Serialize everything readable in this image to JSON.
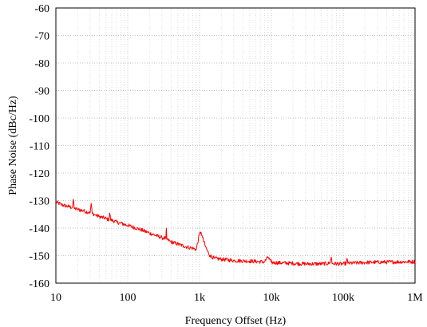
{
  "chart_data": {
    "type": "line",
    "title": "",
    "xlabel": "Frequency Offset (Hz)",
    "ylabel": "Phase Noise (dBc/Hz)",
    "x_scale": "log",
    "xlim": [
      10,
      1000000
    ],
    "ylim": [
      -160,
      -60
    ],
    "x_ticks": [
      10,
      100,
      1000,
      10000,
      100000,
      1000000
    ],
    "x_tick_labels": [
      "10",
      "100",
      "1k",
      "10k",
      "100k",
      "1M"
    ],
    "y_ticks": [
      -60,
      -70,
      -80,
      -90,
      -100,
      -110,
      -120,
      -130,
      -140,
      -150,
      -160
    ],
    "y_tick_labels": [
      "-60",
      "-70",
      "-80",
      "-90",
      "-100",
      "-110",
      "-120",
      "-130",
      "-140",
      "-150",
      "-160"
    ],
    "grid": true,
    "legend": "none",
    "series": [
      {
        "color": "#ff0000",
        "x": [
          10,
          12,
          15,
          17,
          17.5,
          18,
          20,
          25,
          30,
          31,
          32,
          35,
          40,
          50,
          55,
          56,
          58,
          70,
          100,
          150,
          200,
          300,
          340,
          345,
          350,
          400,
          500,
          600,
          700,
          800,
          900,
          1000,
          1050,
          1100,
          1200,
          1300,
          1400,
          1600,
          2000,
          3000,
          5000,
          8000,
          9000,
          10000,
          20000,
          30000,
          50000,
          65000,
          68000,
          70000,
          100000,
          110000,
          113000,
          116000,
          200000,
          500000,
          1000000
        ],
        "y": [
          -130.5,
          -131.5,
          -132.2,
          -132.5,
          -129.5,
          -132.8,
          -133.2,
          -133.8,
          -134.5,
          -131,
          -134.6,
          -135.2,
          -135.8,
          -136.5,
          -137,
          -134.5,
          -137,
          -137.8,
          -139,
          -140.5,
          -141.8,
          -143.5,
          -143.8,
          -140,
          -144,
          -145,
          -145.8,
          -146.5,
          -147,
          -147.3,
          -147.8,
          -142,
          -141.5,
          -143.5,
          -146.5,
          -148.5,
          -150,
          -151,
          -151.3,
          -151.8,
          -152,
          -152.3,
          -150.5,
          -152.5,
          -152.8,
          -153,
          -153,
          -152.8,
          -150.5,
          -152.9,
          -153,
          -152.8,
          -151,
          -152.8,
          -152.5,
          -152.3,
          -152.2
        ]
      }
    ]
  }
}
